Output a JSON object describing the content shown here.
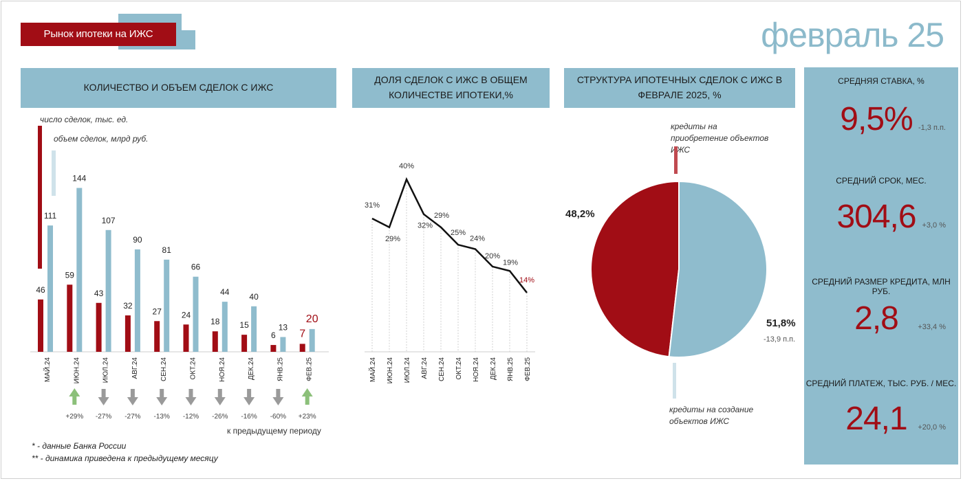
{
  "header": {
    "title": "Рынок ипотеки на ИЖС",
    "period": "февраль 25"
  },
  "panels": {
    "deals": "КОЛИЧЕСТВО И ОБЪЕМ СДЕЛОК С ИЖС",
    "share": "ДОЛЯ СДЕЛОК С ИЖС В ОБЩЕМ КОЛИЧЕСТВЕ ИПОТЕКИ,%",
    "structure": "СТРУКТУРА  ИПОТЕЧНЫХ СДЕЛОК С ИЖС В ФЕВРАЛЕ 2025, %"
  },
  "legend": {
    "count": "число сделок, тыс. ед.",
    "volume": "объем сделок, млрд руб."
  },
  "dynamics_caption": "к предыдущему периоду",
  "footnotes": [
    "*  - данные Банка России",
    "**  - динамика приведена к предыдущему месяцу"
  ],
  "kpi": [
    {
      "label": "СРЕДНЯЯ СТАВКА, %",
      "value": "9,5%",
      "delta": "-1,3 п.п."
    },
    {
      "label": "СРЕДНИЙ СРОК, МЕС.",
      "value": "304,6",
      "delta": "+3,0 %"
    },
    {
      "label": "СРЕДНИЙ РАЗМЕР КРЕДИТА, МЛН  РУБ.",
      "value": "2,8",
      "delta": "+33,4 %"
    },
    {
      "label": "СРЕДНИЙ ПЛАТЕЖ, ТЫС. РУБ. / МЕС.",
      "value": "24,1",
      "delta": "+20,0 %"
    }
  ],
  "colors": {
    "red": "#a10d15",
    "blue": "#8fbccd",
    "up_arrow": "#8cc07a",
    "down_arrow": "#9a9a9a"
  },
  "chart_data": [
    {
      "type": "bar",
      "title": "КОЛИЧЕСТВО И ОБЪЕМ СДЕЛОК С ИЖС",
      "categories": [
        "МАЙ.24",
        "ИЮН.24",
        "ИЮЛ.24",
        "АВГ.24",
        "СЕН.24",
        "ОКТ.24",
        "НОЯ.24",
        "ДЕК.24",
        "ЯНВ.25",
        "ФЕВ.25"
      ],
      "series": [
        {
          "name": "число сделок, тыс. ед.",
          "values": [
            46,
            59,
            43,
            32,
            27,
            24,
            18,
            15,
            6,
            7
          ]
        },
        {
          "name": "объем сделок, млрд руб.",
          "values": [
            111,
            144,
            107,
            90,
            81,
            66,
            44,
            40,
            13,
            20
          ]
        }
      ],
      "dynamics": [
        null,
        "+29%",
        "-27%",
        "-27%",
        "-13%",
        "-12%",
        "-26%",
        "-16%",
        "-60%",
        "+23%"
      ],
      "ylim": [
        0,
        160
      ]
    },
    {
      "type": "line",
      "title": "ДОЛЯ СДЕЛОК С ИЖС В ОБЩЕМ КОЛИЧЕСТВЕ ИПОТЕКИ,%",
      "categories": [
        "МАЙ.24",
        "ИЮН.24",
        "ИЮЛ.24",
        "АВГ.24",
        "СЕН.24",
        "ОКТ.24",
        "НОЯ.24",
        "ДЕК.24",
        "ЯНВ.25",
        "ФЕВ.25"
      ],
      "values": [
        31,
        29,
        40,
        32,
        29,
        25,
        24,
        20,
        19,
        14
      ],
      "labels": [
        "31%",
        "29%",
        "40%",
        "32%",
        "29%",
        "25%",
        "24%",
        "20%",
        "19%",
        "14%"
      ],
      "ylim": [
        10,
        42
      ]
    },
    {
      "type": "pie",
      "title": "СТРУКТУРА  ИПОТЕЧНЫХ СДЕЛОК С ИЖС В ФЕВРАЛЕ 2025, %",
      "slices": [
        {
          "name": "кредиты на приобретение объектов ИЖС",
          "value": 48.2,
          "label": "48,2%"
        },
        {
          "name": "кредиты на создание объектов ИЖС",
          "value": 51.8,
          "label": "51,8%",
          "delta": "-13,9 п.п."
        }
      ]
    }
  ]
}
